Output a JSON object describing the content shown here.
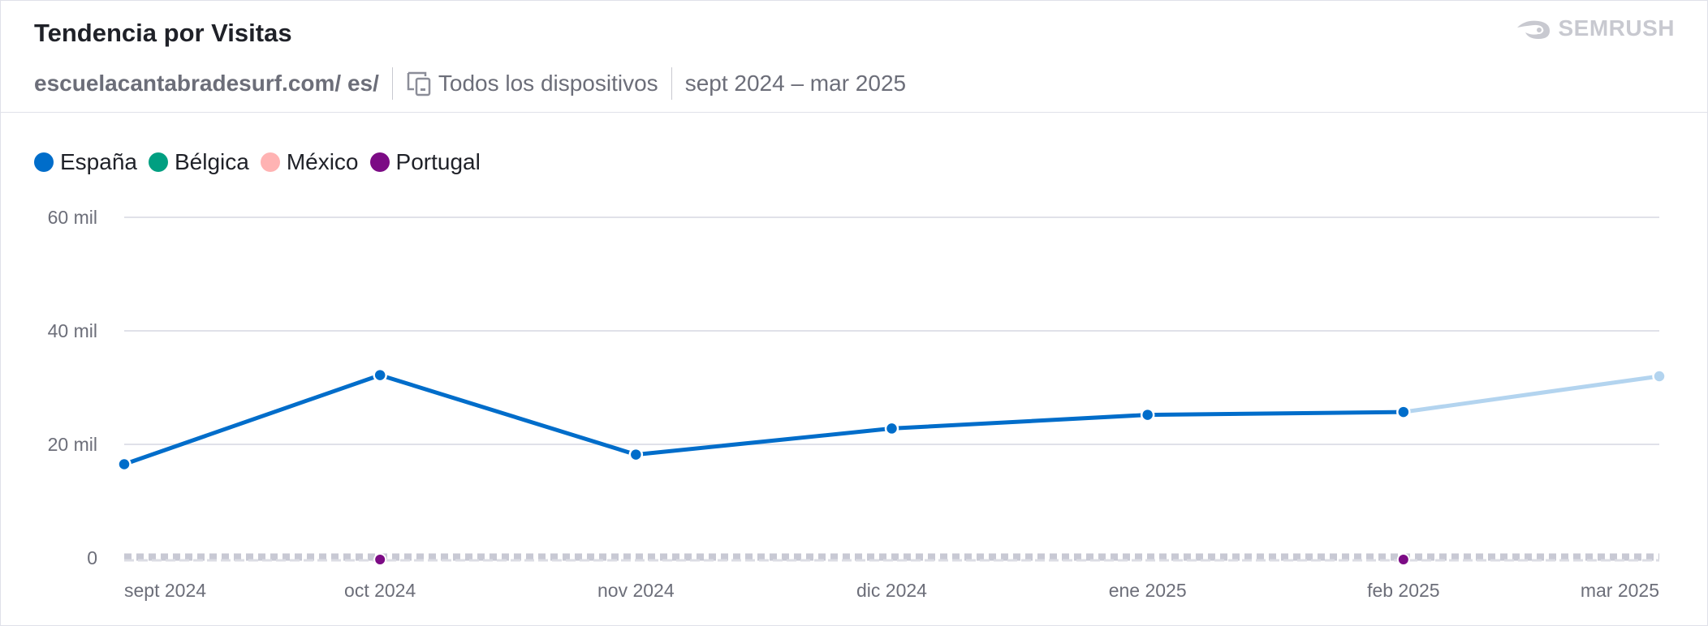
{
  "header": {
    "title": "Tendencia por Visitas",
    "domain": "escuelacantabradesurf.com/ es/",
    "devices": "Todos los dispositivos",
    "date_range": "sept 2024 – mar 2025",
    "logo_text": "SEMRUSH",
    "logo_icon": "semrush-fireball-icon",
    "devices_icon": "devices-icon"
  },
  "colors": {
    "espana": "#006dca",
    "espana_projection": "#b3d4ef",
    "belgica": "#009f81",
    "mexico": "#ffb3b3",
    "portugal": "#7c0b85",
    "grid": "#e0e1e9",
    "zero_band": "#c8c9d4"
  },
  "chart_data": {
    "type": "line",
    "title": "",
    "xlabel": "",
    "ylabel": "",
    "categories": [
      "sept 2024",
      "oct 2024",
      "nov 2024",
      "dic 2024",
      "ene 2025",
      "feb 2025",
      "mar 2025"
    ],
    "y_ticks": [
      {
        "value": 0,
        "label": "0"
      },
      {
        "value": 20000,
        "label": "20 mil"
      },
      {
        "value": 40000,
        "label": "40 mil"
      },
      {
        "value": 60000,
        "label": "60 mil"
      }
    ],
    "ylim": [
      0,
      60000
    ],
    "grid": true,
    "legend_position": "top-left",
    "series": [
      {
        "name": "España",
        "values": [
          16500,
          32200,
          18200,
          22800,
          25200,
          25700,
          32000
        ],
        "projected_from_index": 5
      },
      {
        "name": "Bélgica",
        "values": [
          0,
          0,
          0,
          0,
          0,
          0,
          0
        ]
      },
      {
        "name": "México",
        "values": [
          0,
          0,
          0,
          0,
          0,
          0,
          0
        ]
      },
      {
        "name": "Portugal",
        "values": [
          0,
          0,
          0,
          0,
          0,
          0,
          0
        ],
        "marked_indices": [
          1,
          5
        ]
      }
    ]
  }
}
